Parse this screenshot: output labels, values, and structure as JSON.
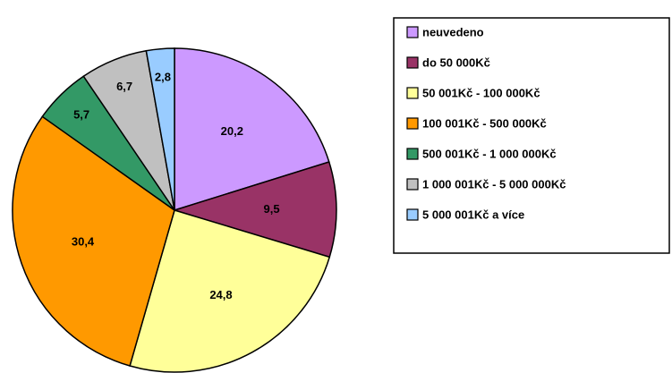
{
  "chart_data": {
    "type": "pie",
    "categories": [
      "neuvedeno",
      "do 50 000Kč",
      "50 001Kč - 100 000Kč",
      "100 001Kč - 500 000Kč",
      "500 001Kč - 1 000 000Kč",
      "1 000 001Kč - 5 000 000Kč",
      "5 000 001Kč a více"
    ],
    "values": [
      20.2,
      9.5,
      24.8,
      30.4,
      5.7,
      6.7,
      2.8
    ],
    "value_labels": [
      "20,2",
      "9,5",
      "24,8",
      "30,4",
      "5,7",
      "6,7",
      "2,8"
    ],
    "colors": [
      "#cc99ff",
      "#993366",
      "#ffff99",
      "#ff9900",
      "#339966",
      "#c0c0c0",
      "#99ccff"
    ],
    "legend": "right"
  }
}
